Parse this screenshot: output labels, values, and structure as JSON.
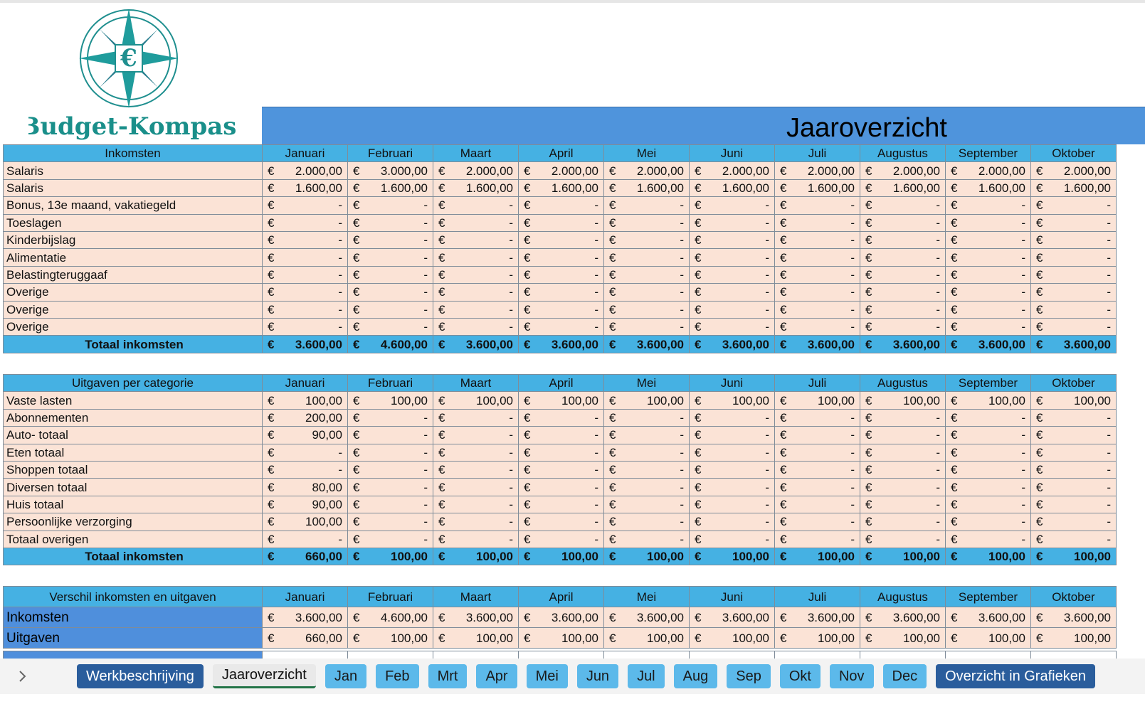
{
  "logo": {
    "text": "Budget-Kompas",
    "symbol": "€"
  },
  "title": "Jaaroverzicht",
  "currency": "€",
  "months": [
    "Januari",
    "Februari",
    "Maart",
    "April",
    "Mei",
    "Juni",
    "Juli",
    "Augustus",
    "September",
    "Oktober"
  ],
  "income": {
    "header": "Inkomsten",
    "rows": [
      {
        "label": "Salaris",
        "values": [
          "2.000,00",
          "3.000,00",
          "2.000,00",
          "2.000,00",
          "2.000,00",
          "2.000,00",
          "2.000,00",
          "2.000,00",
          "2.000,00",
          "2.000,00"
        ]
      },
      {
        "label": "Salaris",
        "values": [
          "1.600,00",
          "1.600,00",
          "1.600,00",
          "1.600,00",
          "1.600,00",
          "1.600,00",
          "1.600,00",
          "1.600,00",
          "1.600,00",
          "1.600,00"
        ]
      },
      {
        "label": "Bonus, 13e maand, vakatiegeld",
        "values": [
          "-",
          "-",
          "-",
          "-",
          "-",
          "-",
          "-",
          "-",
          "-",
          "-"
        ]
      },
      {
        "label": "Toeslagen",
        "values": [
          "-",
          "-",
          "-",
          "-",
          "-",
          "-",
          "-",
          "-",
          "-",
          "-"
        ]
      },
      {
        "label": "Kinderbijslag",
        "values": [
          "-",
          "-",
          "-",
          "-",
          "-",
          "-",
          "-",
          "-",
          "-",
          "-"
        ]
      },
      {
        "label": "Alimentatie",
        "values": [
          "-",
          "-",
          "-",
          "-",
          "-",
          "-",
          "-",
          "-",
          "-",
          "-"
        ]
      },
      {
        "label": "Belastingteruggaaf",
        "values": [
          "-",
          "-",
          "-",
          "-",
          "-",
          "-",
          "-",
          "-",
          "-",
          "-"
        ]
      },
      {
        "label": "Overige",
        "values": [
          "-",
          "-",
          "-",
          "-",
          "-",
          "-",
          "-",
          "-",
          "-",
          "-"
        ]
      },
      {
        "label": "Overige",
        "values": [
          "-",
          "-",
          "-",
          "-",
          "-",
          "-",
          "-",
          "-",
          "-",
          "-"
        ]
      },
      {
        "label": "Overige",
        "values": [
          "-",
          "-",
          "-",
          "-",
          "-",
          "-",
          "-",
          "-",
          "-",
          "-"
        ]
      }
    ],
    "total": {
      "label": "Totaal inkomsten",
      "values": [
        "3.600,00",
        "4.600,00",
        "3.600,00",
        "3.600,00",
        "3.600,00",
        "3.600,00",
        "3.600,00",
        "3.600,00",
        "3.600,00",
        "3.600,00"
      ]
    }
  },
  "expenses": {
    "header": "Uitgaven per categorie",
    "rows": [
      {
        "label": "Vaste lasten",
        "values": [
          "100,00",
          "100,00",
          "100,00",
          "100,00",
          "100,00",
          "100,00",
          "100,00",
          "100,00",
          "100,00",
          "100,00"
        ]
      },
      {
        "label": "Abonnementen",
        "values": [
          "200,00",
          "-",
          "-",
          "-",
          "-",
          "-",
          "-",
          "-",
          "-",
          "-"
        ]
      },
      {
        "label": "Auto- totaal",
        "values": [
          "90,00",
          "-",
          "-",
          "-",
          "-",
          "-",
          "-",
          "-",
          "-",
          "-"
        ]
      },
      {
        "label": "Eten totaal",
        "values": [
          "-",
          "-",
          "-",
          "-",
          "-",
          "-",
          "-",
          "-",
          "-",
          "-"
        ]
      },
      {
        "label": "Shoppen totaal",
        "values": [
          "-",
          "-",
          "-",
          "-",
          "-",
          "-",
          "-",
          "-",
          "-",
          "-"
        ]
      },
      {
        "label": "Diversen totaal",
        "values": [
          "80,00",
          "-",
          "-",
          "-",
          "-",
          "-",
          "-",
          "-",
          "-",
          "-"
        ]
      },
      {
        "label": "Huis totaal",
        "values": [
          "90,00",
          "-",
          "-",
          "-",
          "-",
          "-",
          "-",
          "-",
          "-",
          "-"
        ]
      },
      {
        "label": "Persoonlijke verzorging",
        "values": [
          "100,00",
          "-",
          "-",
          "-",
          "-",
          "-",
          "-",
          "-",
          "-",
          "-"
        ]
      },
      {
        "label": "Totaal overigen",
        "values": [
          "-",
          "-",
          "-",
          "-",
          "-",
          "-",
          "-",
          "-",
          "-",
          "-"
        ]
      }
    ],
    "total": {
      "label": "Totaal inkomsten",
      "values": [
        "660,00",
        "100,00",
        "100,00",
        "100,00",
        "100,00",
        "100,00",
        "100,00",
        "100,00",
        "100,00",
        "100,00"
      ]
    }
  },
  "difference": {
    "header": "Verschil inkomsten en uitgaven",
    "rows": [
      {
        "label": "Inkomsten",
        "values": [
          "3.600,00",
          "4.600,00",
          "3.600,00",
          "3.600,00",
          "3.600,00",
          "3.600,00",
          "3.600,00",
          "3.600,00",
          "3.600,00",
          "3.600,00"
        ]
      },
      {
        "label": "Uitgaven",
        "values": [
          "660,00",
          "100,00",
          "100,00",
          "100,00",
          "100,00",
          "100,00",
          "100,00",
          "100,00",
          "100,00",
          "100,00"
        ]
      }
    ]
  },
  "tabs": [
    "Werkbeschrijving",
    "Jaaroverzicht",
    "Jan",
    "Feb",
    "Mrt",
    "Apr",
    "Mei",
    "Jun",
    "Jul",
    "Aug",
    "Sep",
    "Okt",
    "Nov",
    "Dec",
    "Overzicht in Grafieken"
  ]
}
